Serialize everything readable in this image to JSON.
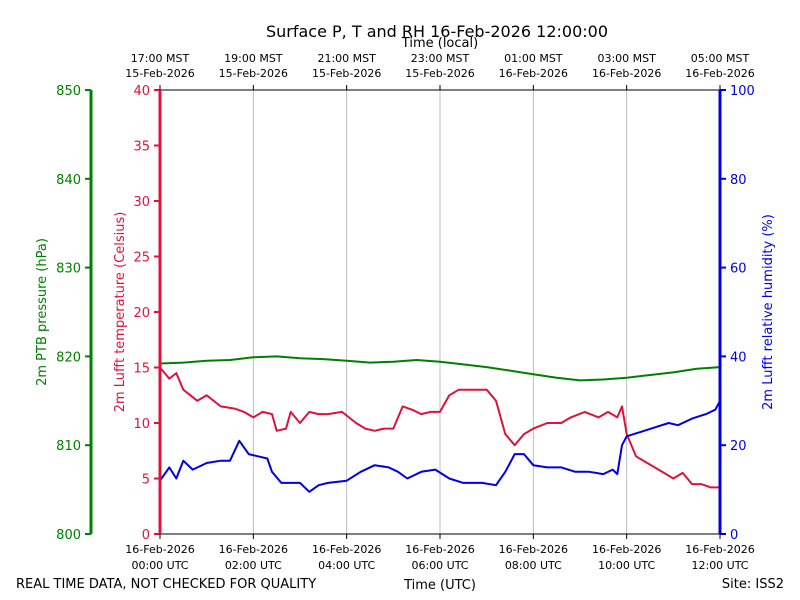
{
  "chart_data": {
    "type": "line",
    "title": "Surface P, T and RH 16-Feb-2026 12:00:00",
    "top_axis_label": "Time (local)",
    "bottom_axis_label": "Time (UTC)",
    "footer_left": "REAL TIME DATA, NOT CHECKED FOR QUALITY",
    "footer_right": "Site: ISS2",
    "x_range_hours": [
      0,
      12
    ],
    "bottom_ticks": [
      {
        "hour": 0,
        "line1": "16-Feb-2026",
        "line2": "00:00 UTC"
      },
      {
        "hour": 2,
        "line1": "16-Feb-2026",
        "line2": "02:00 UTC"
      },
      {
        "hour": 4,
        "line1": "16-Feb-2026",
        "line2": "04:00 UTC"
      },
      {
        "hour": 6,
        "line1": "16-Feb-2026",
        "line2": "06:00 UTC"
      },
      {
        "hour": 8,
        "line1": "16-Feb-2026",
        "line2": "08:00 UTC"
      },
      {
        "hour": 10,
        "line1": "16-Feb-2026",
        "line2": "10:00 UTC"
      },
      {
        "hour": 12,
        "line1": "16-Feb-2026",
        "line2": "12:00 UTC"
      }
    ],
    "top_ticks": [
      {
        "hour": 0,
        "line1": "17:00 MST",
        "line2": "15-Feb-2026"
      },
      {
        "hour": 2,
        "line1": "19:00 MST",
        "line2": "15-Feb-2026"
      },
      {
        "hour": 4,
        "line1": "21:00 MST",
        "line2": "15-Feb-2026"
      },
      {
        "hour": 6,
        "line1": "23:00 MST",
        "line2": "15-Feb-2026"
      },
      {
        "hour": 8,
        "line1": "01:00 MST",
        "line2": "16-Feb-2026"
      },
      {
        "hour": 10,
        "line1": "03:00 MST",
        "line2": "16-Feb-2026"
      },
      {
        "hour": 12,
        "line1": "05:00 MST",
        "line2": "16-Feb-2026"
      }
    ],
    "axes": {
      "pressure": {
        "label": "2m PTB pressure (hPa)",
        "range": [
          800,
          850
        ],
        "ticks": [
          800,
          810,
          820,
          830,
          840,
          850
        ],
        "color": "#008000"
      },
      "temperature": {
        "label": "2m Lufft temperature (Celsius)",
        "range": [
          0,
          40
        ],
        "ticks": [
          0,
          5,
          10,
          15,
          20,
          25,
          30,
          35,
          40
        ],
        "color": "#dc143c"
      },
      "humidity": {
        "label": "2m Lufft relative humidity (%)",
        "range": [
          0,
          100
        ],
        "ticks": [
          0,
          20,
          40,
          60,
          80,
          100
        ],
        "color": "#0000e0"
      }
    },
    "series": [
      {
        "name": "2m PTB pressure",
        "axis": "pressure",
        "color": "#008000",
        "points": [
          [
            0,
            819.2
          ],
          [
            0.5,
            819.3
          ],
          [
            1,
            819.5
          ],
          [
            1.5,
            819.6
          ],
          [
            2,
            819.9
          ],
          [
            2.5,
            820.0
          ],
          [
            3,
            819.8
          ],
          [
            3.5,
            819.7
          ],
          [
            4,
            819.5
          ],
          [
            4.5,
            819.3
          ],
          [
            5,
            819.4
          ],
          [
            5.5,
            819.6
          ],
          [
            6,
            819.4
          ],
          [
            6.5,
            819.1
          ],
          [
            7,
            818.8
          ],
          [
            7.5,
            818.4
          ],
          [
            8,
            818.0
          ],
          [
            8.5,
            817.6
          ],
          [
            9,
            817.3
          ],
          [
            9.5,
            817.4
          ],
          [
            10,
            817.6
          ],
          [
            10.5,
            817.9
          ],
          [
            11,
            818.2
          ],
          [
            11.5,
            818.6
          ],
          [
            12,
            818.8
          ]
        ]
      },
      {
        "name": "2m Lufft temperature",
        "axis": "temperature",
        "color": "#dc143c",
        "points": [
          [
            0,
            15.0
          ],
          [
            0.2,
            14.0
          ],
          [
            0.35,
            14.5
          ],
          [
            0.5,
            13.0
          ],
          [
            0.8,
            12.0
          ],
          [
            1.0,
            12.5
          ],
          [
            1.3,
            11.5
          ],
          [
            1.6,
            11.3
          ],
          [
            1.8,
            11.0
          ],
          [
            2.0,
            10.5
          ],
          [
            2.2,
            11.0
          ],
          [
            2.4,
            10.8
          ],
          [
            2.5,
            9.3
          ],
          [
            2.7,
            9.5
          ],
          [
            2.8,
            11.0
          ],
          [
            3.0,
            10.0
          ],
          [
            3.2,
            11.0
          ],
          [
            3.4,
            10.8
          ],
          [
            3.6,
            10.8
          ],
          [
            3.9,
            11.0
          ],
          [
            4.2,
            10.0
          ],
          [
            4.4,
            9.5
          ],
          [
            4.6,
            9.3
          ],
          [
            4.8,
            9.5
          ],
          [
            5.0,
            9.5
          ],
          [
            5.2,
            11.5
          ],
          [
            5.4,
            11.2
          ],
          [
            5.6,
            10.8
          ],
          [
            5.8,
            11.0
          ],
          [
            6.0,
            11.0
          ],
          [
            6.2,
            12.5
          ],
          [
            6.4,
            13.0
          ],
          [
            6.7,
            13.0
          ],
          [
            7.0,
            13.0
          ],
          [
            7.2,
            12.0
          ],
          [
            7.4,
            9.0
          ],
          [
            7.6,
            8.0
          ],
          [
            7.8,
            9.0
          ],
          [
            8.0,
            9.5
          ],
          [
            8.3,
            10.0
          ],
          [
            8.6,
            10.0
          ],
          [
            8.8,
            10.5
          ],
          [
            9.1,
            11.0
          ],
          [
            9.4,
            10.5
          ],
          [
            9.6,
            11.0
          ],
          [
            9.8,
            10.5
          ],
          [
            9.9,
            11.5
          ],
          [
            10.0,
            9.0
          ],
          [
            10.2,
            7.0
          ],
          [
            10.4,
            6.5
          ],
          [
            10.6,
            6.0
          ],
          [
            10.8,
            5.5
          ],
          [
            11.0,
            5.0
          ],
          [
            11.2,
            5.5
          ],
          [
            11.4,
            4.5
          ],
          [
            11.6,
            4.5
          ],
          [
            11.8,
            4.2
          ],
          [
            12.0,
            4.2
          ]
        ]
      },
      {
        "name": "2m Lufft relative humidity",
        "axis": "humidity",
        "color": "#0000e0",
        "points": [
          [
            0,
            12.0
          ],
          [
            0.2,
            15.0
          ],
          [
            0.35,
            12.5
          ],
          [
            0.5,
            16.5
          ],
          [
            0.7,
            14.5
          ],
          [
            1.0,
            16.0
          ],
          [
            1.3,
            16.5
          ],
          [
            1.5,
            16.5
          ],
          [
            1.7,
            21.0
          ],
          [
            1.9,
            18.0
          ],
          [
            2.1,
            17.5
          ],
          [
            2.3,
            17.0
          ],
          [
            2.4,
            14.0
          ],
          [
            2.6,
            11.5
          ],
          [
            3.0,
            11.5
          ],
          [
            3.2,
            9.5
          ],
          [
            3.4,
            11.0
          ],
          [
            3.6,
            11.5
          ],
          [
            4.0,
            12.0
          ],
          [
            4.3,
            14.0
          ],
          [
            4.6,
            15.5
          ],
          [
            4.9,
            15.0
          ],
          [
            5.1,
            14.0
          ],
          [
            5.3,
            12.5
          ],
          [
            5.6,
            14.0
          ],
          [
            5.9,
            14.5
          ],
          [
            6.2,
            12.5
          ],
          [
            6.5,
            11.5
          ],
          [
            6.9,
            11.5
          ],
          [
            7.2,
            11.0
          ],
          [
            7.4,
            14.0
          ],
          [
            7.6,
            18.0
          ],
          [
            7.8,
            18.0
          ],
          [
            8.0,
            15.5
          ],
          [
            8.3,
            15.0
          ],
          [
            8.6,
            15.0
          ],
          [
            8.9,
            14.0
          ],
          [
            9.2,
            14.0
          ],
          [
            9.5,
            13.5
          ],
          [
            9.7,
            14.5
          ],
          [
            9.8,
            13.5
          ],
          [
            9.9,
            20.0
          ],
          [
            10.0,
            22.0
          ],
          [
            10.3,
            23.0
          ],
          [
            10.6,
            24.0
          ],
          [
            10.9,
            25.0
          ],
          [
            11.1,
            24.5
          ],
          [
            11.4,
            26.0
          ],
          [
            11.7,
            27.0
          ],
          [
            11.9,
            28.0
          ],
          [
            12.0,
            30.0
          ]
        ]
      }
    ]
  }
}
